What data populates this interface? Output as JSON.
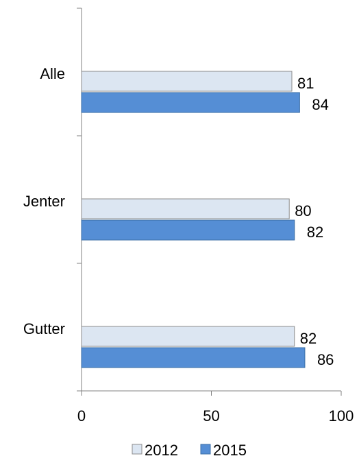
{
  "chart_data": {
    "type": "bar",
    "orientation": "horizontal",
    "categories": [
      "Alle",
      "Jenter",
      "Gutter"
    ],
    "series": [
      {
        "name": "2012",
        "values": [
          81,
          80,
          82
        ],
        "color": "#dce6f2",
        "stroke": "#8c8c8c"
      },
      {
        "name": "2015",
        "values": [
          84,
          82,
          86
        ],
        "color": "#558ed5",
        "stroke": "#3a6ea5"
      }
    ],
    "xlim": [
      0,
      100
    ],
    "xticks": [
      "0",
      "50",
      "100"
    ],
    "grid": false,
    "legend_position": "bottom",
    "data_labels": true
  }
}
